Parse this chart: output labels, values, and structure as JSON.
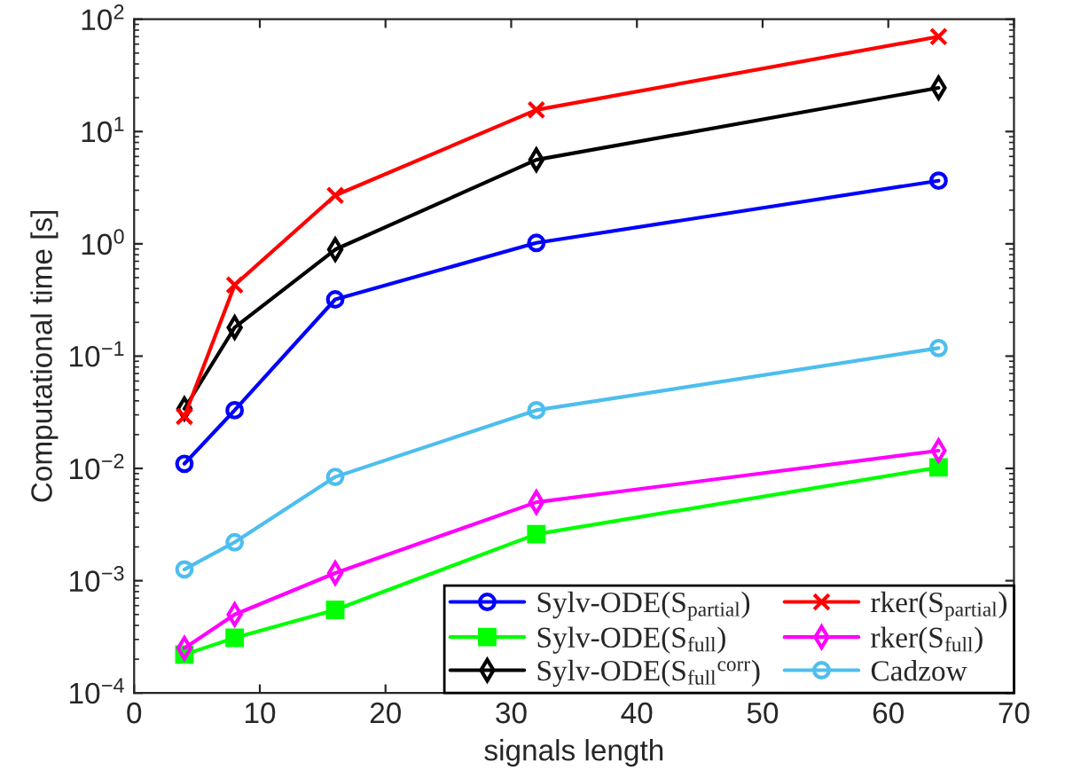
{
  "chart_data": {
    "type": "line",
    "xlabel": "signals length",
    "ylabel": "Computational time [s]",
    "x": [
      4,
      8,
      16,
      32,
      64
    ],
    "xlim": [
      0,
      70
    ],
    "xticks": [
      0,
      10,
      20,
      30,
      40,
      50,
      60,
      70
    ],
    "log": "y",
    "ylim": [
      0.0001,
      100
    ],
    "yticks": [
      {
        "value": 0.0001,
        "label": "10$^{−4}$"
      },
      {
        "value": 0.001,
        "label": "10$^{−3}$"
      },
      {
        "value": 0.01,
        "label": "10$^{−2}$"
      },
      {
        "value": 0.1,
        "label": "10$^{−1}$"
      },
      {
        "value": 1,
        "label": "10$^{0}$"
      },
      {
        "value": 10,
        "label": "10$^{1}$"
      },
      {
        "value": 100,
        "label": "10$^{2}$"
      }
    ],
    "legend": "bottom right",
    "line_style": "solid",
    "series": [
      {
        "name": "Sylv-ODE(S$_{partial}$)",
        "color": "#0000ff",
        "marker": "circle",
        "values": [
          0.011,
          0.033,
          0.32,
          1.02,
          3.65
        ]
      },
      {
        "name": "Sylv-ODE(S$_{full}$)",
        "color": "#00ff00",
        "marker": "square",
        "values": [
          0.00022,
          0.00031,
          0.00055,
          0.0026,
          0.0102
        ]
      },
      {
        "name": "Sylv-ODE(S$_{full}$$^{corr}$)",
        "color": "#000000",
        "marker": "diamond",
        "values": [
          0.034,
          0.18,
          0.89,
          5.6,
          24.5
        ]
      },
      {
        "name": "rker(S$_{partial}$)",
        "color": "#ff0000",
        "marker": "cross",
        "values": [
          0.029,
          0.43,
          2.7,
          15.6,
          70
        ]
      },
      {
        "name": "rker(S$_{full}$)",
        "color": "#ff00ff",
        "marker": "diamond",
        "values": [
          0.00025,
          0.0005,
          0.00117,
          0.005,
          0.0144
        ]
      },
      {
        "name": "Cadzow",
        "color": "#4dbeee",
        "marker": "circle",
        "values": [
          0.00126,
          0.0022,
          0.0084,
          0.033,
          0.118
        ]
      }
    ]
  }
}
